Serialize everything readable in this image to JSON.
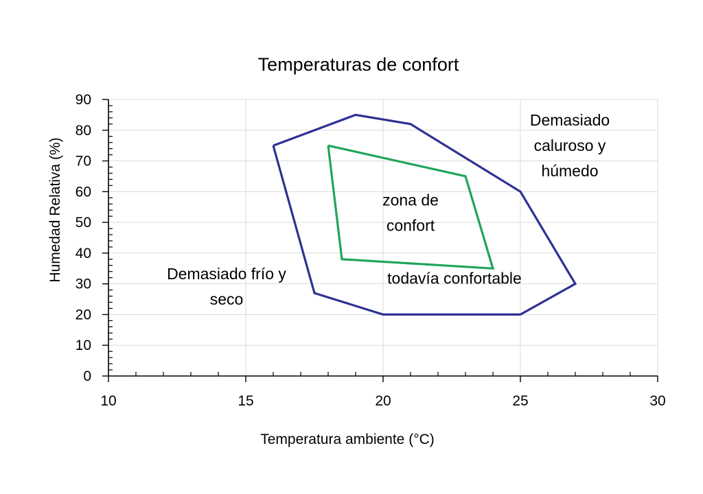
{
  "chart_data": {
    "type": "scatter",
    "title": "Temperaturas de confort",
    "xlabel": "Temperatura ambiente (°C)",
    "ylabel": "Humedad Relativa (%)",
    "xlim": [
      10,
      30
    ],
    "ylim": [
      0,
      90
    ],
    "x_ticks": [
      10,
      15,
      20,
      25,
      30
    ],
    "y_ticks": [
      0,
      10,
      20,
      30,
      40,
      50,
      60,
      70,
      80,
      90
    ],
    "x_minor_step": 1,
    "y_minor_step": 2,
    "grid": true,
    "series": [
      {
        "color": "#2E3192",
        "closed": true,
        "points": [
          [
            16,
            75
          ],
          [
            19,
            85
          ],
          [
            21,
            82
          ],
          [
            25,
            60
          ],
          [
            27,
            30
          ],
          [
            25,
            20
          ],
          [
            20,
            20
          ],
          [
            17.5,
            27
          ],
          [
            16,
            75
          ]
        ]
      },
      {
        "color": "#1FA55B",
        "closed": true,
        "points": [
          [
            18,
            75
          ],
          [
            23,
            65
          ],
          [
            24,
            35
          ],
          [
            18.5,
            38
          ],
          [
            18,
            75
          ]
        ]
      }
    ],
    "annotations": [
      {
        "lines": [
          "Demasiado",
          "caluroso y",
          "húmedo"
        ],
        "x": 26.8,
        "y": 81.5
      },
      {
        "lines": [
          "zona de",
          "confort"
        ],
        "x": 21,
        "y": 55.5
      },
      {
        "lines": [
          "todavía confortable"
        ],
        "x": 22.6,
        "y": 30
      },
      {
        "lines": [
          "Demasiado frío y",
          "seco"
        ],
        "x": 14.3,
        "y": 31.5
      }
    ]
  }
}
